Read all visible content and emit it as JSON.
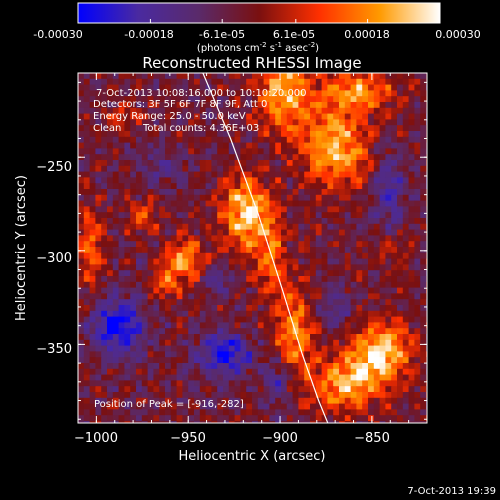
{
  "chart_data": {
    "type": "heatmap",
    "title": "Reconstructed RHESSI Image",
    "xlabel": "Heliocentric X (arcsec)",
    "ylabel": "Heliocentric Y (arcsec)",
    "xlim": [
      -1010,
      -820
    ],
    "ylim": [
      -392,
      -205
    ],
    "xticks": [
      -1000,
      -950,
      -900,
      -850
    ],
    "xtick_labels": [
      "−1000",
      "−950",
      "−900",
      "−850"
    ],
    "yticks": [
      -250,
      -300,
      -350
    ],
    "ytick_labels": [
      "−250",
      "−300",
      "−350"
    ],
    "colorbar": {
      "range": [
        -0.0003,
        0.0003
      ],
      "ticks": [
        -0.0003,
        -0.00018,
        -6.1e-05,
        6.1e-05,
        0.00018,
        0.0003
      ],
      "tick_labels": [
        "-0.00030",
        "-0.00018",
        "-6.1e-05",
        "6.1e-05",
        "0.00018",
        "0.00030"
      ],
      "unit_label_main": "(photons cm",
      "unit_exp1": "-2",
      "unit_mid": " s",
      "unit_exp2": "-1",
      "unit_mid2": " asec",
      "unit_exp3": "-2",
      "unit_end": ")",
      "colors": [
        "#0000ff",
        "#4a2aa0",
        "#5a2a6a",
        "#7a1010",
        "#ff3000",
        "#ff9a00",
        "#ffffff"
      ]
    },
    "annotations": {
      "time_range": "7-Oct-2013 10:08:16.000 to 10:10:20.000",
      "detectors": "Detectors: 3F 5F 6F 7F 8F 9F, Att 0",
      "energy": "Energy Range: 25.0 - 50.0 keV",
      "method": "Clean",
      "counts": "Total counts: 4.36E+03",
      "peak": "Position of Peak = [-916,-282]"
    },
    "limb": {
      "x": [
        -942,
        -927,
        -912,
        -899,
        -888,
        -879,
        -874
      ],
      "y": [
        -205,
        -240,
        -280,
        -320,
        -355,
        -380,
        -392
      ]
    },
    "hotspots": [
      {
        "x": -918,
        "y": -280,
        "value": 0.0003,
        "sx": 10,
        "sy": 13
      },
      {
        "x": -898,
        "y": -215,
        "value": 0.00026,
        "sx": 10,
        "sy": 16
      },
      {
        "x": -870,
        "y": -245,
        "value": 0.00028,
        "sx": 12,
        "sy": 14
      },
      {
        "x": -858,
        "y": -215,
        "value": 0.00022,
        "sx": 14,
        "sy": 8
      },
      {
        "x": -845,
        "y": -355,
        "value": 0.0003,
        "sx": 12,
        "sy": 12
      },
      {
        "x": -865,
        "y": -372,
        "value": 0.00024,
        "sx": 12,
        "sy": 10
      },
      {
        "x": -892,
        "y": -345,
        "value": 0.00022,
        "sx": 8,
        "sy": 18
      },
      {
        "x": -952,
        "y": -305,
        "value": 0.00022,
        "sx": 8,
        "sy": 8
      },
      {
        "x": -962,
        "y": -318,
        "value": 0.00014,
        "sx": 6,
        "sy": 6
      },
      {
        "x": -975,
        "y": -282,
        "value": 0.00016,
        "sx": 6,
        "sy": 6
      },
      {
        "x": -1003,
        "y": -300,
        "value": 0.00018,
        "sx": 5,
        "sy": 14
      },
      {
        "x": -985,
        "y": -228,
        "value": 0.0001,
        "sx": 8,
        "sy": 5
      },
      {
        "x": -905,
        "y": -305,
        "value": 0.00016,
        "sx": 6,
        "sy": 14
      },
      {
        "x": -840,
        "y": -300,
        "value": 0.0001,
        "sx": 8,
        "sy": 8
      }
    ],
    "coldspots": [
      {
        "x": -988,
        "y": -340,
        "value": -0.00028,
        "sx": 10,
        "sy": 10
      },
      {
        "x": -930,
        "y": -355,
        "value": -0.00024,
        "sx": 10,
        "sy": 8
      },
      {
        "x": -900,
        "y": -370,
        "value": -0.00016,
        "sx": 6,
        "sy": 10
      },
      {
        "x": -870,
        "y": -330,
        "value": -0.00012,
        "sx": 8,
        "sy": 8
      },
      {
        "x": -965,
        "y": -255,
        "value": -0.0001,
        "sx": 8,
        "sy": 6
      },
      {
        "x": -935,
        "y": -315,
        "value": -0.00012,
        "sx": 6,
        "sy": 6
      },
      {
        "x": -840,
        "y": -270,
        "value": -0.00014,
        "sx": 6,
        "sy": 16
      }
    ]
  },
  "footer": {
    "timestamp": "7-Oct-2013 19:39"
  }
}
